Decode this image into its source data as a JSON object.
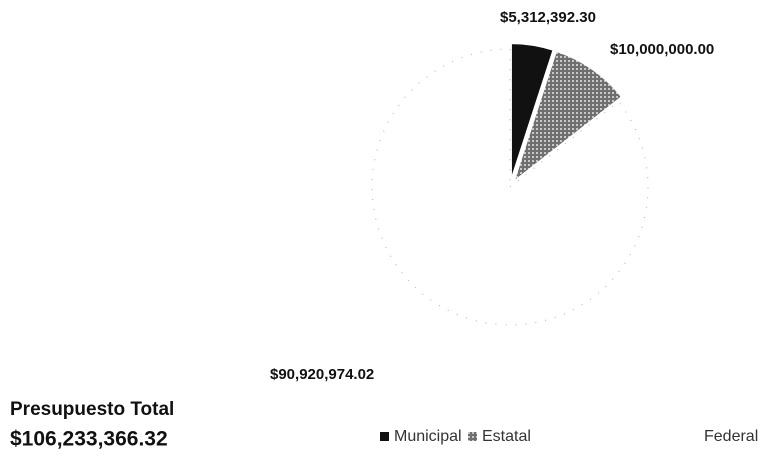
{
  "chart_data": {
    "type": "pie",
    "categories": [
      "Municipal",
      "Estatal",
      "Federal"
    ],
    "values": [
      5312392.3,
      10000000.0,
      90920974.02
    ],
    "value_labels": [
      "$5,312,392.30",
      "$10,000,000.00",
      "$90,920,974.02"
    ],
    "colors": [
      "#111111",
      "#8a8a8a",
      "#ffffff"
    ],
    "annotations": [
      "Presupuesto Total",
      "$106,233,366.32"
    ],
    "legend": "bottom"
  }
}
